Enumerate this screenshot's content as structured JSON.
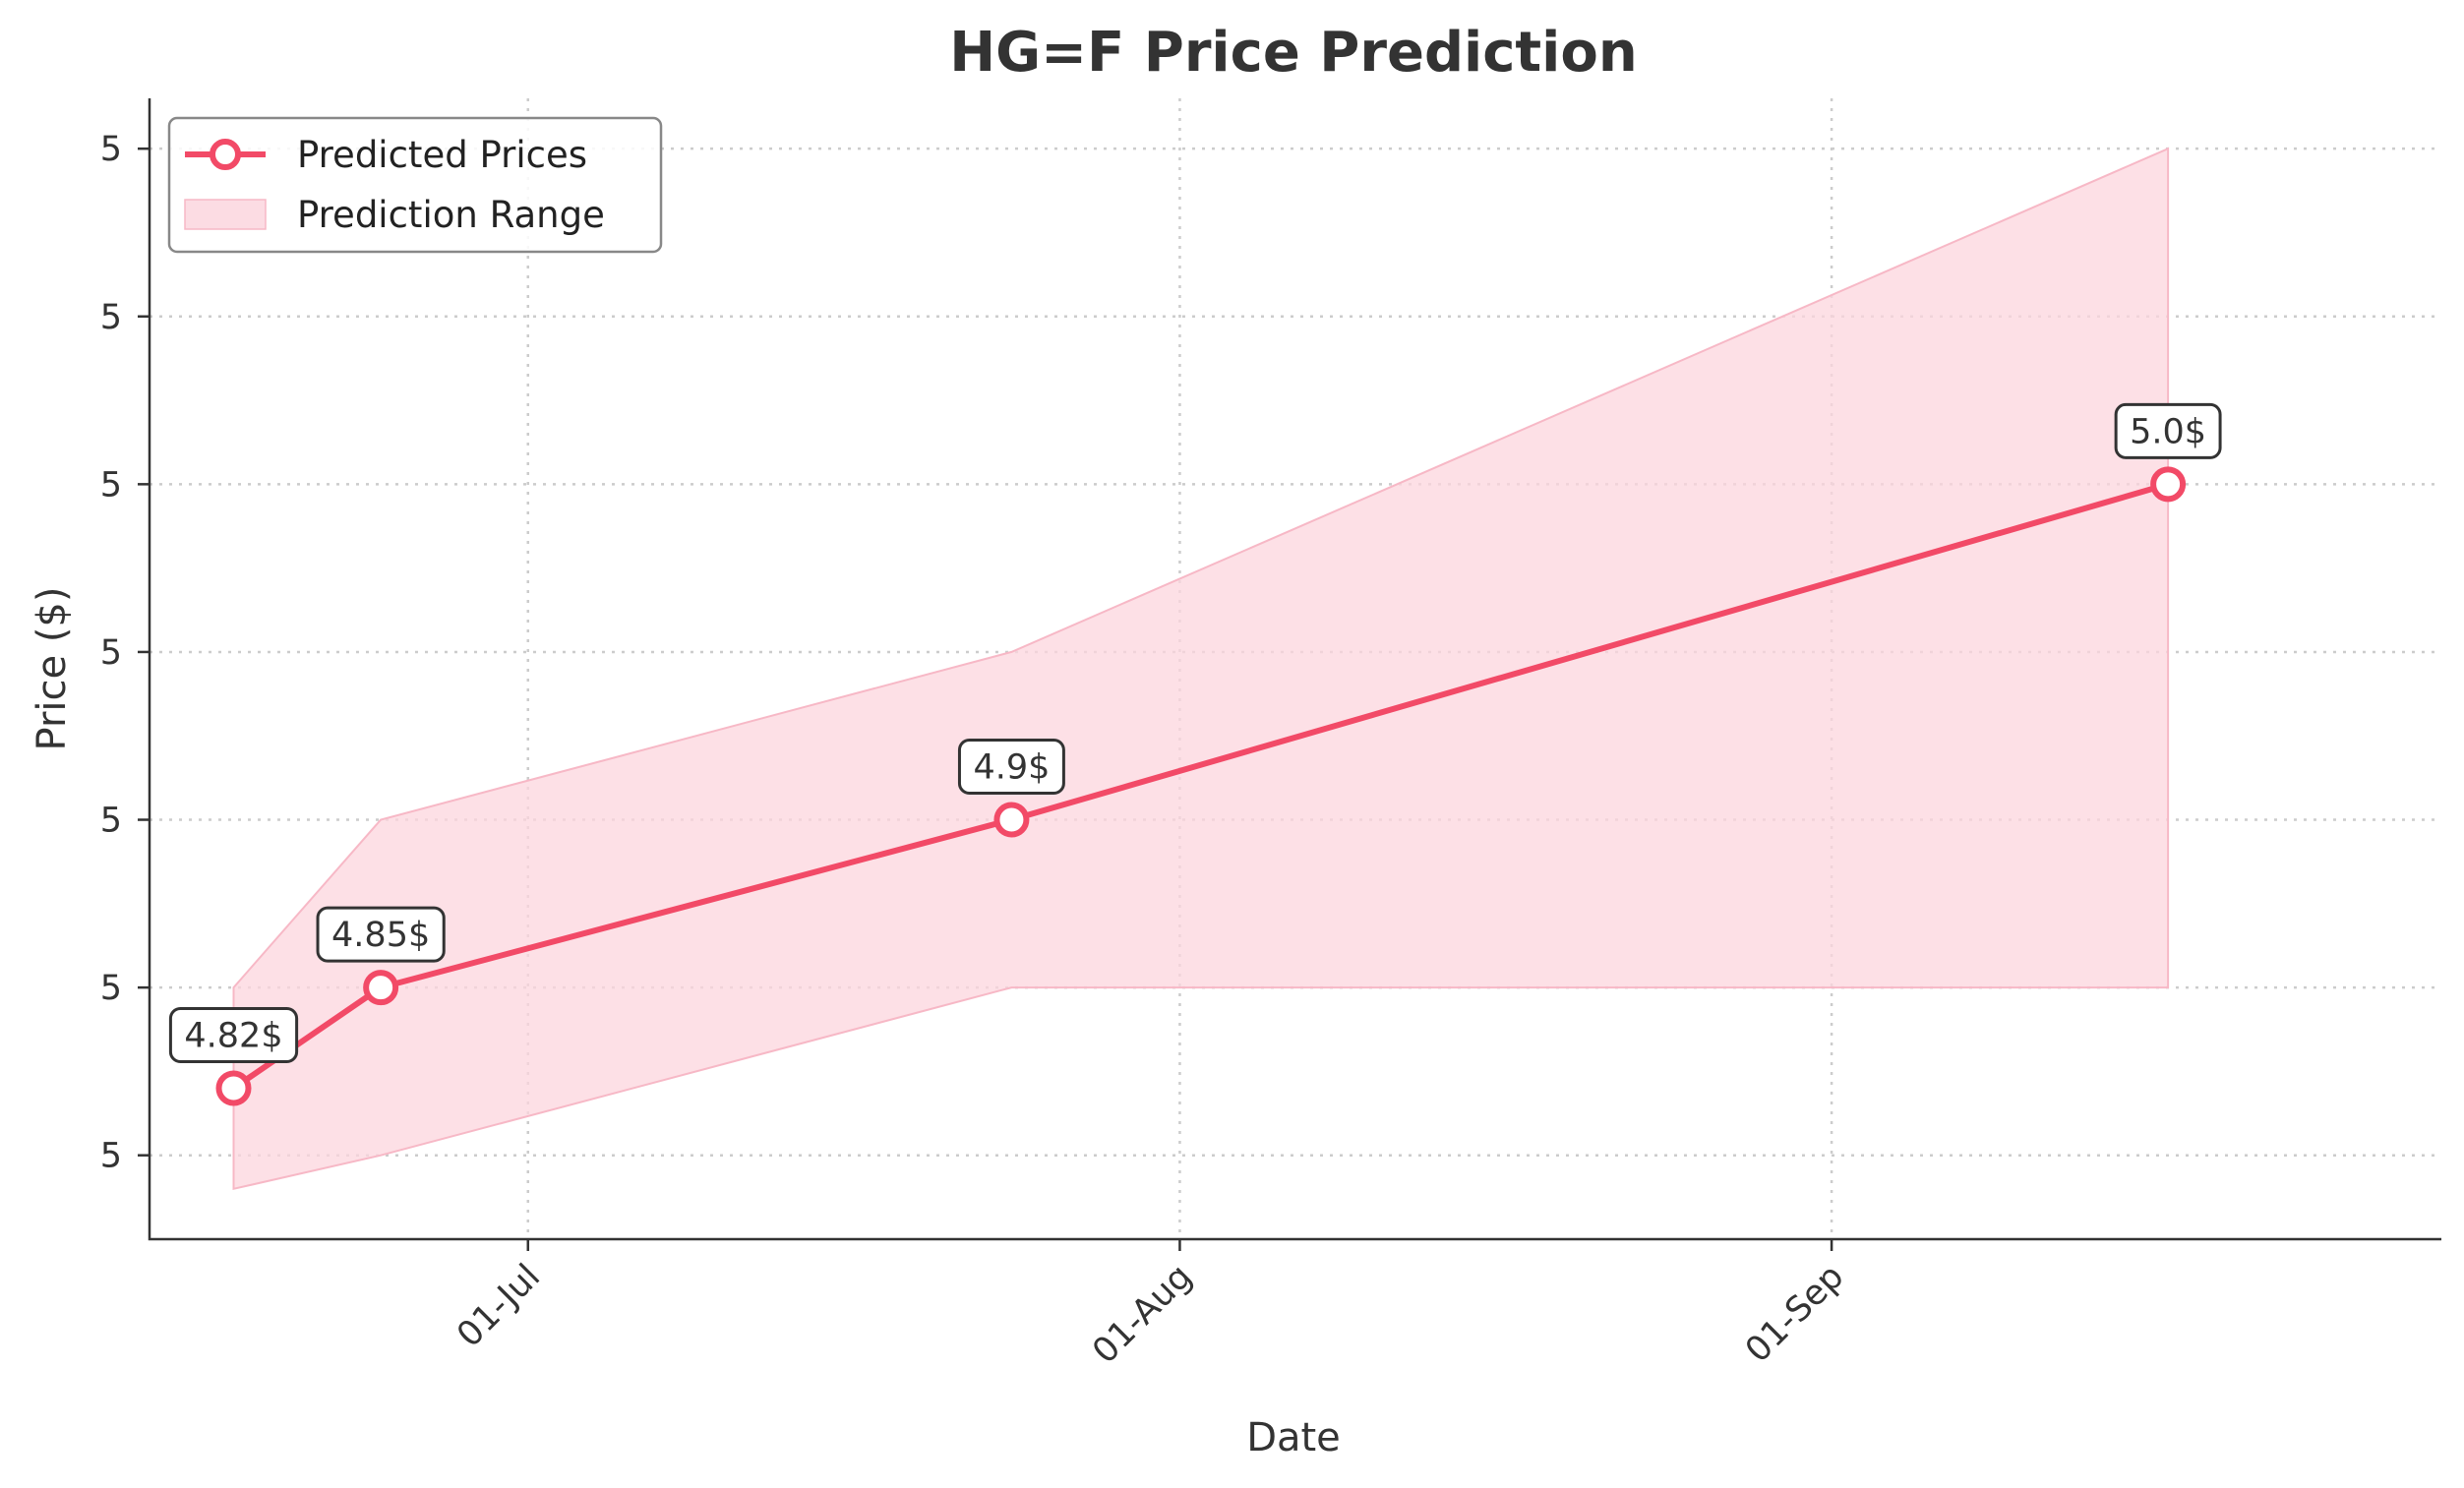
{
  "chart_data": {
    "type": "line",
    "title": "HG=F Price Prediction",
    "xlabel": "Date",
    "ylabel": "Price ($)",
    "x_ticks": [
      {
        "date": "2024-07-01",
        "label": "01-Jul"
      },
      {
        "date": "2024-08-01",
        "label": "01-Aug"
      },
      {
        "date": "2024-09-01",
        "label": "01-Sep"
      }
    ],
    "y_ticks": [
      {
        "value": 4.8,
        "label": "5"
      },
      {
        "value": 4.85,
        "label": "5"
      },
      {
        "value": 4.9,
        "label": "5"
      },
      {
        "value": 4.95,
        "label": "5"
      },
      {
        "value": 5.0,
        "label": "5"
      },
      {
        "value": 5.05,
        "label": "5"
      },
      {
        "value": 5.1,
        "label": "5"
      }
    ],
    "xlim": [
      "2024-06-13",
      "2024-09-30"
    ],
    "ylim": [
      4.775,
      5.115
    ],
    "grid": true,
    "legend_position": "top-left",
    "series": [
      {
        "name": "Predicted Prices",
        "color": "#f24a67",
        "points": [
          {
            "date": "2024-06-17",
            "value": 4.82,
            "label": "4.82$"
          },
          {
            "date": "2024-06-24",
            "value": 4.85,
            "label": "4.85$"
          },
          {
            "date": "2024-07-24",
            "value": 4.9,
            "label": "4.9$"
          },
          {
            "date": "2024-09-17",
            "value": 5.0,
            "label": "5.0$"
          }
        ]
      }
    ],
    "range": {
      "name": "Prediction Range",
      "color": "#fcd6de",
      "points": [
        {
          "date": "2024-06-17",
          "lower": 4.79,
          "upper": 4.85
        },
        {
          "date": "2024-06-24",
          "lower": 4.8,
          "upper": 4.9
        },
        {
          "date": "2024-07-24",
          "lower": 4.85,
          "upper": 4.95
        },
        {
          "date": "2024-09-17",
          "lower": 4.85,
          "upper": 5.1
        }
      ]
    }
  }
}
